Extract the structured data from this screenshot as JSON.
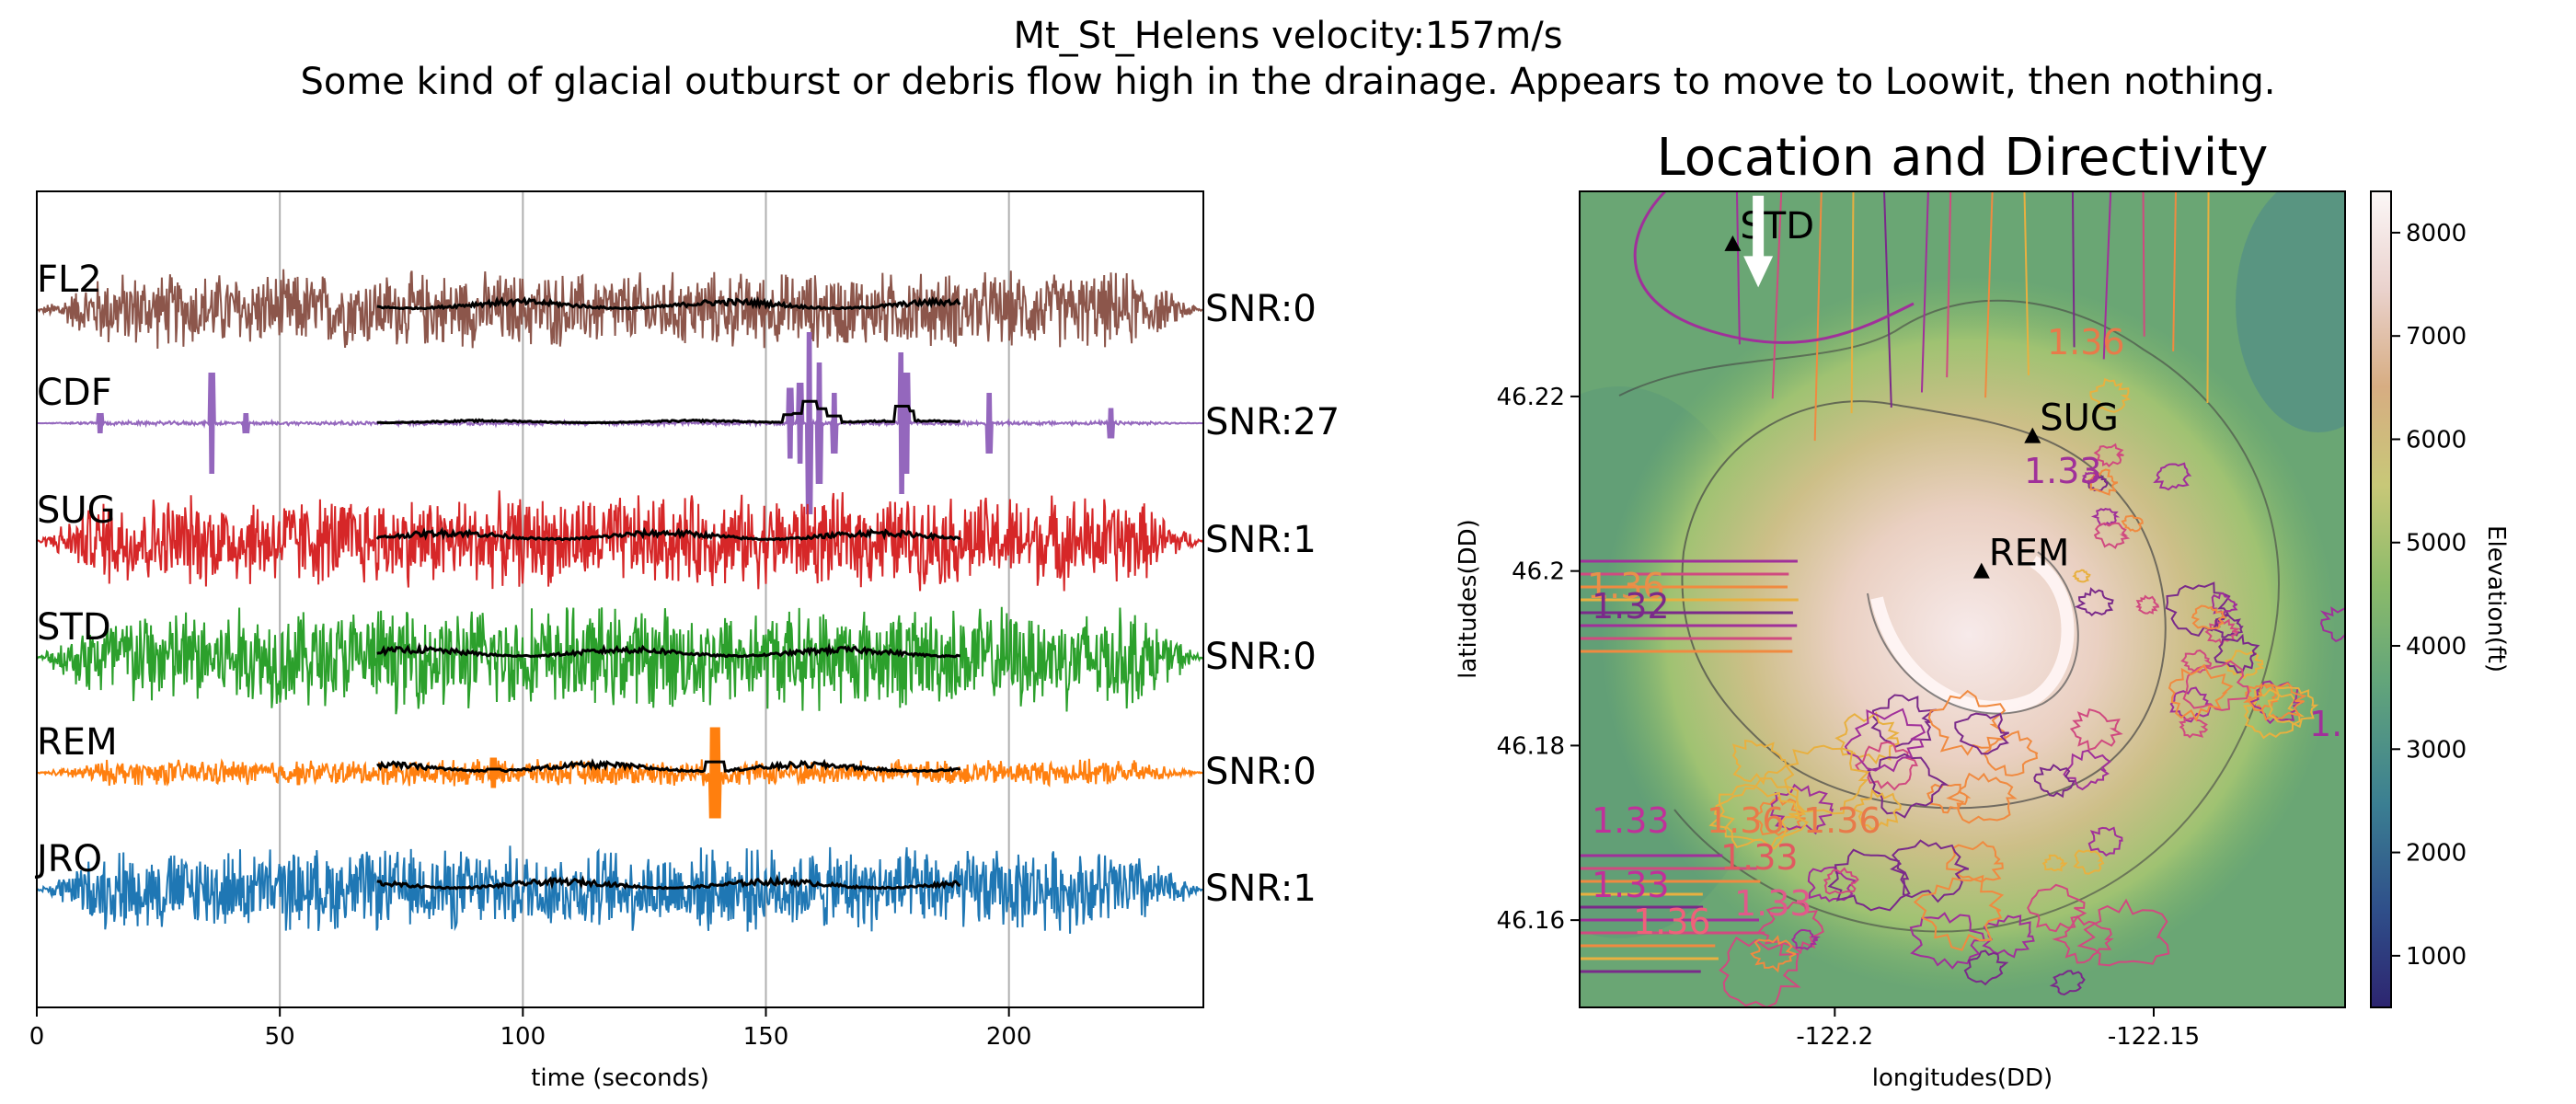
{
  "figure": {
    "title_line1": "Mt_St_Helens velocity:157m/s",
    "title_line2": "Some kind of glacial outburst or debris flow high in the drainage.  Appears to move to Loowit, then nothing."
  },
  "chart_data": [
    {
      "type": "line",
      "title": "",
      "xlabel": "time (seconds)",
      "ylabel": "",
      "xlim": [
        0,
        240
      ],
      "xticks": [
        0,
        50,
        100,
        150,
        200
      ],
      "grid": "vertical",
      "envelope_window": [
        70,
        190
      ],
      "series": [
        {
          "name": "FL2",
          "snr": "SNR:0",
          "color": "#8c564b",
          "amp": 0.3,
          "spikes": []
        },
        {
          "name": "CDF",
          "snr": "SNR:27",
          "color": "#9467bd",
          "amp": 0.015,
          "spikes": [
            [
              13,
              0.1
            ],
            [
              36,
              0.5
            ],
            [
              43,
              0.1
            ],
            [
              155,
              0.35
            ],
            [
              157,
              0.4
            ],
            [
              159,
              0.9
            ],
            [
              161,
              0.6
            ],
            [
              164,
              0.3
            ],
            [
              178,
              0.7
            ],
            [
              179,
              0.5
            ],
            [
              196,
              0.3
            ],
            [
              221,
              0.15
            ]
          ]
        },
        {
          "name": "SUG",
          "snr": "SNR:1",
          "color": "#d62728",
          "amp": 0.36,
          "spikes": []
        },
        {
          "name": "STD",
          "snr": "SNR:0",
          "color": "#2ca02c",
          "amp": 0.4,
          "spikes": []
        },
        {
          "name": "REM",
          "snr": "SNR:0",
          "color": "#ff7f0e",
          "amp": 0.1,
          "spikes": [
            [
              94,
              0.15
            ],
            [
              139,
              0.45
            ],
            [
              140,
              0.45
            ]
          ]
        },
        {
          "name": "JRO",
          "snr": "SNR:1",
          "color": "#1f77b4",
          "amp": 0.32,
          "spikes": []
        }
      ]
    },
    {
      "type": "heatmap",
      "title": "Location and Directivity",
      "xlabel": "longitudes(DD)",
      "ylabel": "latitudes(DD)",
      "xlim": [
        -122.24,
        -122.12
      ],
      "ylim": [
        46.15,
        46.2435
      ],
      "xticks": [
        -122.2,
        -122.15
      ],
      "yticks": [
        46.16,
        46.18,
        46.2,
        46.22
      ],
      "colorbar": {
        "label": "Elevation(ft)",
        "range": [
          500,
          8400
        ],
        "ticks": [
          1000,
          2000,
          3000,
          4000,
          5000,
          6000,
          7000,
          8000
        ]
      },
      "stations": [
        {
          "name": "STD",
          "lon": -122.216,
          "lat": 46.2375
        },
        {
          "name": "SUG",
          "lon": -122.169,
          "lat": 46.2155
        },
        {
          "name": "REM",
          "lon": -122.177,
          "lat": 46.2
        }
      ],
      "contour_labels": [
        "1.33",
        "1.36",
        "1.32",
        "1.36",
        "1.33",
        "1.33",
        "1.33",
        "1.36",
        "1.36",
        "1.33",
        "1.36",
        "1."
      ],
      "arrow": {
        "from": [
          -122.212,
          46.243
        ],
        "to": [
          -122.212,
          46.2325
        ]
      }
    }
  ]
}
